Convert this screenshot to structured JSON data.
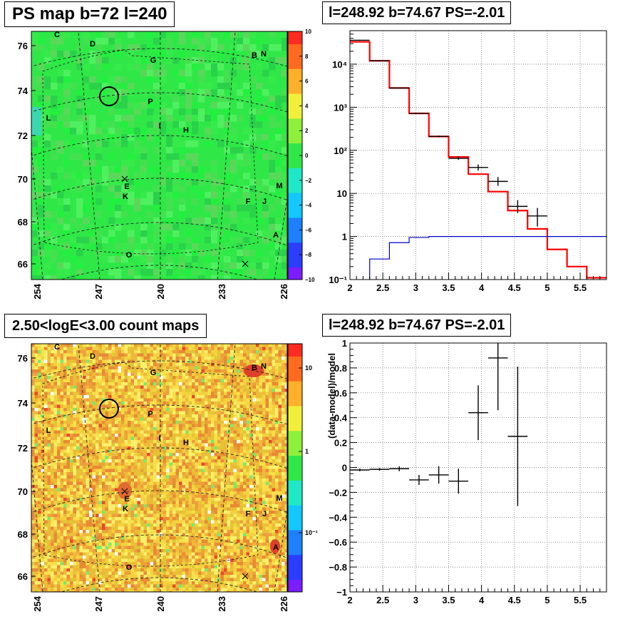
{
  "panels": {
    "ps_map_title": "PS map b=72 l=240",
    "spectrum_title": "l=248.92 b=74.67 PS=-2.01",
    "count_map_title": "2.50<logE<3.00 count maps",
    "residual_title": "l=248.92 b=74.67 PS=-2.01"
  },
  "maps": {
    "b_ticks": [
      "76",
      "74",
      "72",
      "70",
      "68",
      "66"
    ],
    "l_ticks": [
      "254",
      "247",
      "240",
      "233",
      "226"
    ],
    "source_labels": [
      "C",
      "D",
      "G",
      "B",
      "N",
      "P",
      "L",
      "I",
      "H",
      "E",
      "K",
      "M",
      "F",
      "J",
      "A",
      "O"
    ],
    "ps_colorbar_ticks": [
      "10",
      "8",
      "6",
      "4",
      "2",
      "0",
      "−2",
      "−4",
      "−6",
      "−8",
      "−10"
    ],
    "count_colorbar_ticks": [
      "10",
      "1",
      "10⁻¹"
    ],
    "ps_map_base_color": "#2fe848",
    "count_map_base_color": "#f2c93a"
  },
  "chart_data": [
    {
      "type": "line",
      "name": "spectrum",
      "title": "l=248.92 b=74.67 PS=-2.01",
      "xlabel": "",
      "ylabel": "",
      "xlim": [
        2,
        5.9
      ],
      "ylim": [
        0.1,
        60000
      ],
      "y_scale": "log",
      "grid": true,
      "x_ticks": [
        "2",
        "2.5",
        "3",
        "3.5",
        "4",
        "4.5",
        "5",
        "5.5"
      ],
      "y_ticks": [
        "10⁻¹",
        "1",
        "10",
        "10²",
        "10³",
        "10⁴"
      ],
      "series": [
        {
          "color": "#ff0000",
          "style": "histogram",
          "edges": [
            2.0,
            2.3,
            2.6,
            2.9,
            3.2,
            3.5,
            3.8,
            4.1,
            4.4,
            4.7,
            5.0,
            5.3,
            5.6,
            5.9
          ],
          "values": [
            33000,
            12000,
            2800,
            720,
            210,
            70,
            28,
            11,
            4,
            1.5,
            0.5,
            0.2,
            0.11
          ]
        },
        {
          "color": "#0000cc",
          "style": "histogram",
          "edges": [
            2.0,
            2.3,
            2.6,
            2.9,
            3.2,
            3.5,
            3.8,
            4.1,
            4.4,
            4.7,
            5.0,
            5.3,
            5.6,
            5.9
          ],
          "values": [
            0.05,
            0.3,
            0.72,
            0.95,
            1.0,
            1.0,
            1.0,
            1.0,
            1.0,
            1.0,
            1.0,
            1.0,
            1.0
          ]
        },
        {
          "color": "#000000",
          "style": "points",
          "x": [
            2.15,
            2.45,
            2.75,
            3.05,
            3.35,
            3.65,
            3.95,
            4.25,
            4.55,
            4.85
          ],
          "y": [
            36000,
            12000,
            2800,
            720,
            210,
            65,
            40,
            19,
            5,
            3
          ],
          "xerr": [
            0.15,
            0.15,
            0.15,
            0.15,
            0.15,
            0.15,
            0.15,
            0.15,
            0.15,
            0.15
          ],
          "ylow": [
            35000,
            11800,
            2750,
            700,
            200,
            60,
            34,
            15,
            3.5,
            1.7
          ],
          "yhigh": [
            37000,
            12200,
            2850,
            740,
            220,
            72,
            47,
            24,
            7,
            4.6
          ]
        }
      ]
    },
    {
      "type": "scatter",
      "name": "residual",
      "title": "l=248.92 b=74.67 PS=-2.01",
      "xlabel": "",
      "ylabel": "(data-model)/model",
      "xlim": [
        2,
        5.9
      ],
      "ylim": [
        -1,
        1
      ],
      "grid": true,
      "x_ticks": [
        "2",
        "2.5",
        "3",
        "3.5",
        "4",
        "4.5",
        "5",
        "5.5"
      ],
      "y_ticks": [
        "−1",
        "−0.8",
        "−0.6",
        "−0.4",
        "−0.2",
        "0",
        "0.2",
        "0.4",
        "0.6",
        "0.8",
        "1"
      ],
      "series": [
        {
          "color": "#000000",
          "x": [
            2.15,
            2.45,
            2.75,
            3.05,
            3.35,
            3.65,
            3.95,
            4.25,
            4.55
          ],
          "y": [
            -0.02,
            -0.015,
            -0.01,
            -0.1,
            -0.06,
            -0.11,
            0.44,
            0.88,
            0.25
          ],
          "xerr": [
            0.15,
            0.15,
            0.15,
            0.15,
            0.15,
            0.15,
            0.15,
            0.15,
            0.15
          ],
          "yerr": [
            0.01,
            0.01,
            0.02,
            0.04,
            0.07,
            0.1,
            0.22,
            0.42,
            0.56
          ]
        }
      ]
    }
  ]
}
